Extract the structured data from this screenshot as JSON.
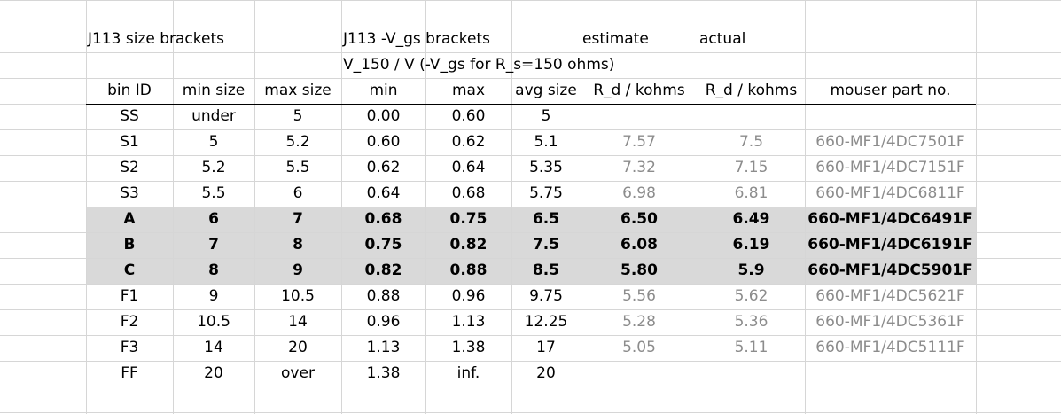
{
  "header": {
    "size_brackets": "J113 size brackets",
    "vgs_brackets": "J113 -V_gs brackets",
    "vgs_subtitle": "V_150 / V (-V_gs for R_s=150 ohms)",
    "estimate": "estimate",
    "actual": "actual"
  },
  "columns": [
    "bin ID",
    "min size",
    "max size",
    "min",
    "max",
    "avg size",
    "R_d / kohms",
    "R_d / kohms",
    "mouser part no."
  ],
  "rows": [
    {
      "bin": "SS",
      "min_size": "under",
      "max_size": "5",
      "vmin": "0.00",
      "vmax": "0.60",
      "avg": "5",
      "est": "",
      "act": "",
      "part": "",
      "style": "normal"
    },
    {
      "bin": "S1",
      "min_size": "5",
      "max_size": "5.2",
      "vmin": "0.60",
      "vmax": "0.62",
      "avg": "5.1",
      "est": "7.57",
      "act": "7.5",
      "part": "660-MF1/4DC7501F",
      "style": "grey"
    },
    {
      "bin": "S2",
      "min_size": "5.2",
      "max_size": "5.5",
      "vmin": "0.62",
      "vmax": "0.64",
      "avg": "5.35",
      "est": "7.32",
      "act": "7.15",
      "part": "660-MF1/4DC7151F",
      "style": "grey"
    },
    {
      "bin": "S3",
      "min_size": "5.5",
      "max_size": "6",
      "vmin": "0.64",
      "vmax": "0.68",
      "avg": "5.75",
      "est": "6.98",
      "act": "6.81",
      "part": "660-MF1/4DC6811F",
      "style": "grey"
    },
    {
      "bin": "A",
      "min_size": "6",
      "max_size": "7",
      "vmin": "0.68",
      "vmax": "0.75",
      "avg": "6.5",
      "est": "6.50",
      "act": "6.49",
      "part": "660-MF1/4DC6491F",
      "style": "bold"
    },
    {
      "bin": "B",
      "min_size": "7",
      "max_size": "8",
      "vmin": "0.75",
      "vmax": "0.82",
      "avg": "7.5",
      "est": "6.08",
      "act": "6.19",
      "part": "660-MF1/4DC6191F",
      "style": "bold"
    },
    {
      "bin": "C",
      "min_size": "8",
      "max_size": "9",
      "vmin": "0.82",
      "vmax": "0.88",
      "avg": "8.5",
      "est": "5.80",
      "act": "5.9",
      "part": "660-MF1/4DC5901F",
      "style": "bold"
    },
    {
      "bin": "F1",
      "min_size": "9",
      "max_size": "10.5",
      "vmin": "0.88",
      "vmax": "0.96",
      "avg": "9.75",
      "est": "5.56",
      "act": "5.62",
      "part": "660-MF1/4DC5621F",
      "style": "grey"
    },
    {
      "bin": "F2",
      "min_size": "10.5",
      "max_size": "14",
      "vmin": "0.96",
      "vmax": "1.13",
      "avg": "12.25",
      "est": "5.28",
      "act": "5.36",
      "part": "660-MF1/4DC5361F",
      "style": "grey"
    },
    {
      "bin": "F3",
      "min_size": "14",
      "max_size": "20",
      "vmin": "1.13",
      "vmax": "1.38",
      "avg": "17",
      "est": "5.05",
      "act": "5.11",
      "part": "660-MF1/4DC5111F",
      "style": "grey"
    },
    {
      "bin": "FF",
      "min_size": "20",
      "max_size": "over",
      "vmin": "1.38",
      "vmax": "inf.",
      "avg": "20",
      "est": "",
      "act": "",
      "part": "",
      "style": "normal"
    }
  ]
}
